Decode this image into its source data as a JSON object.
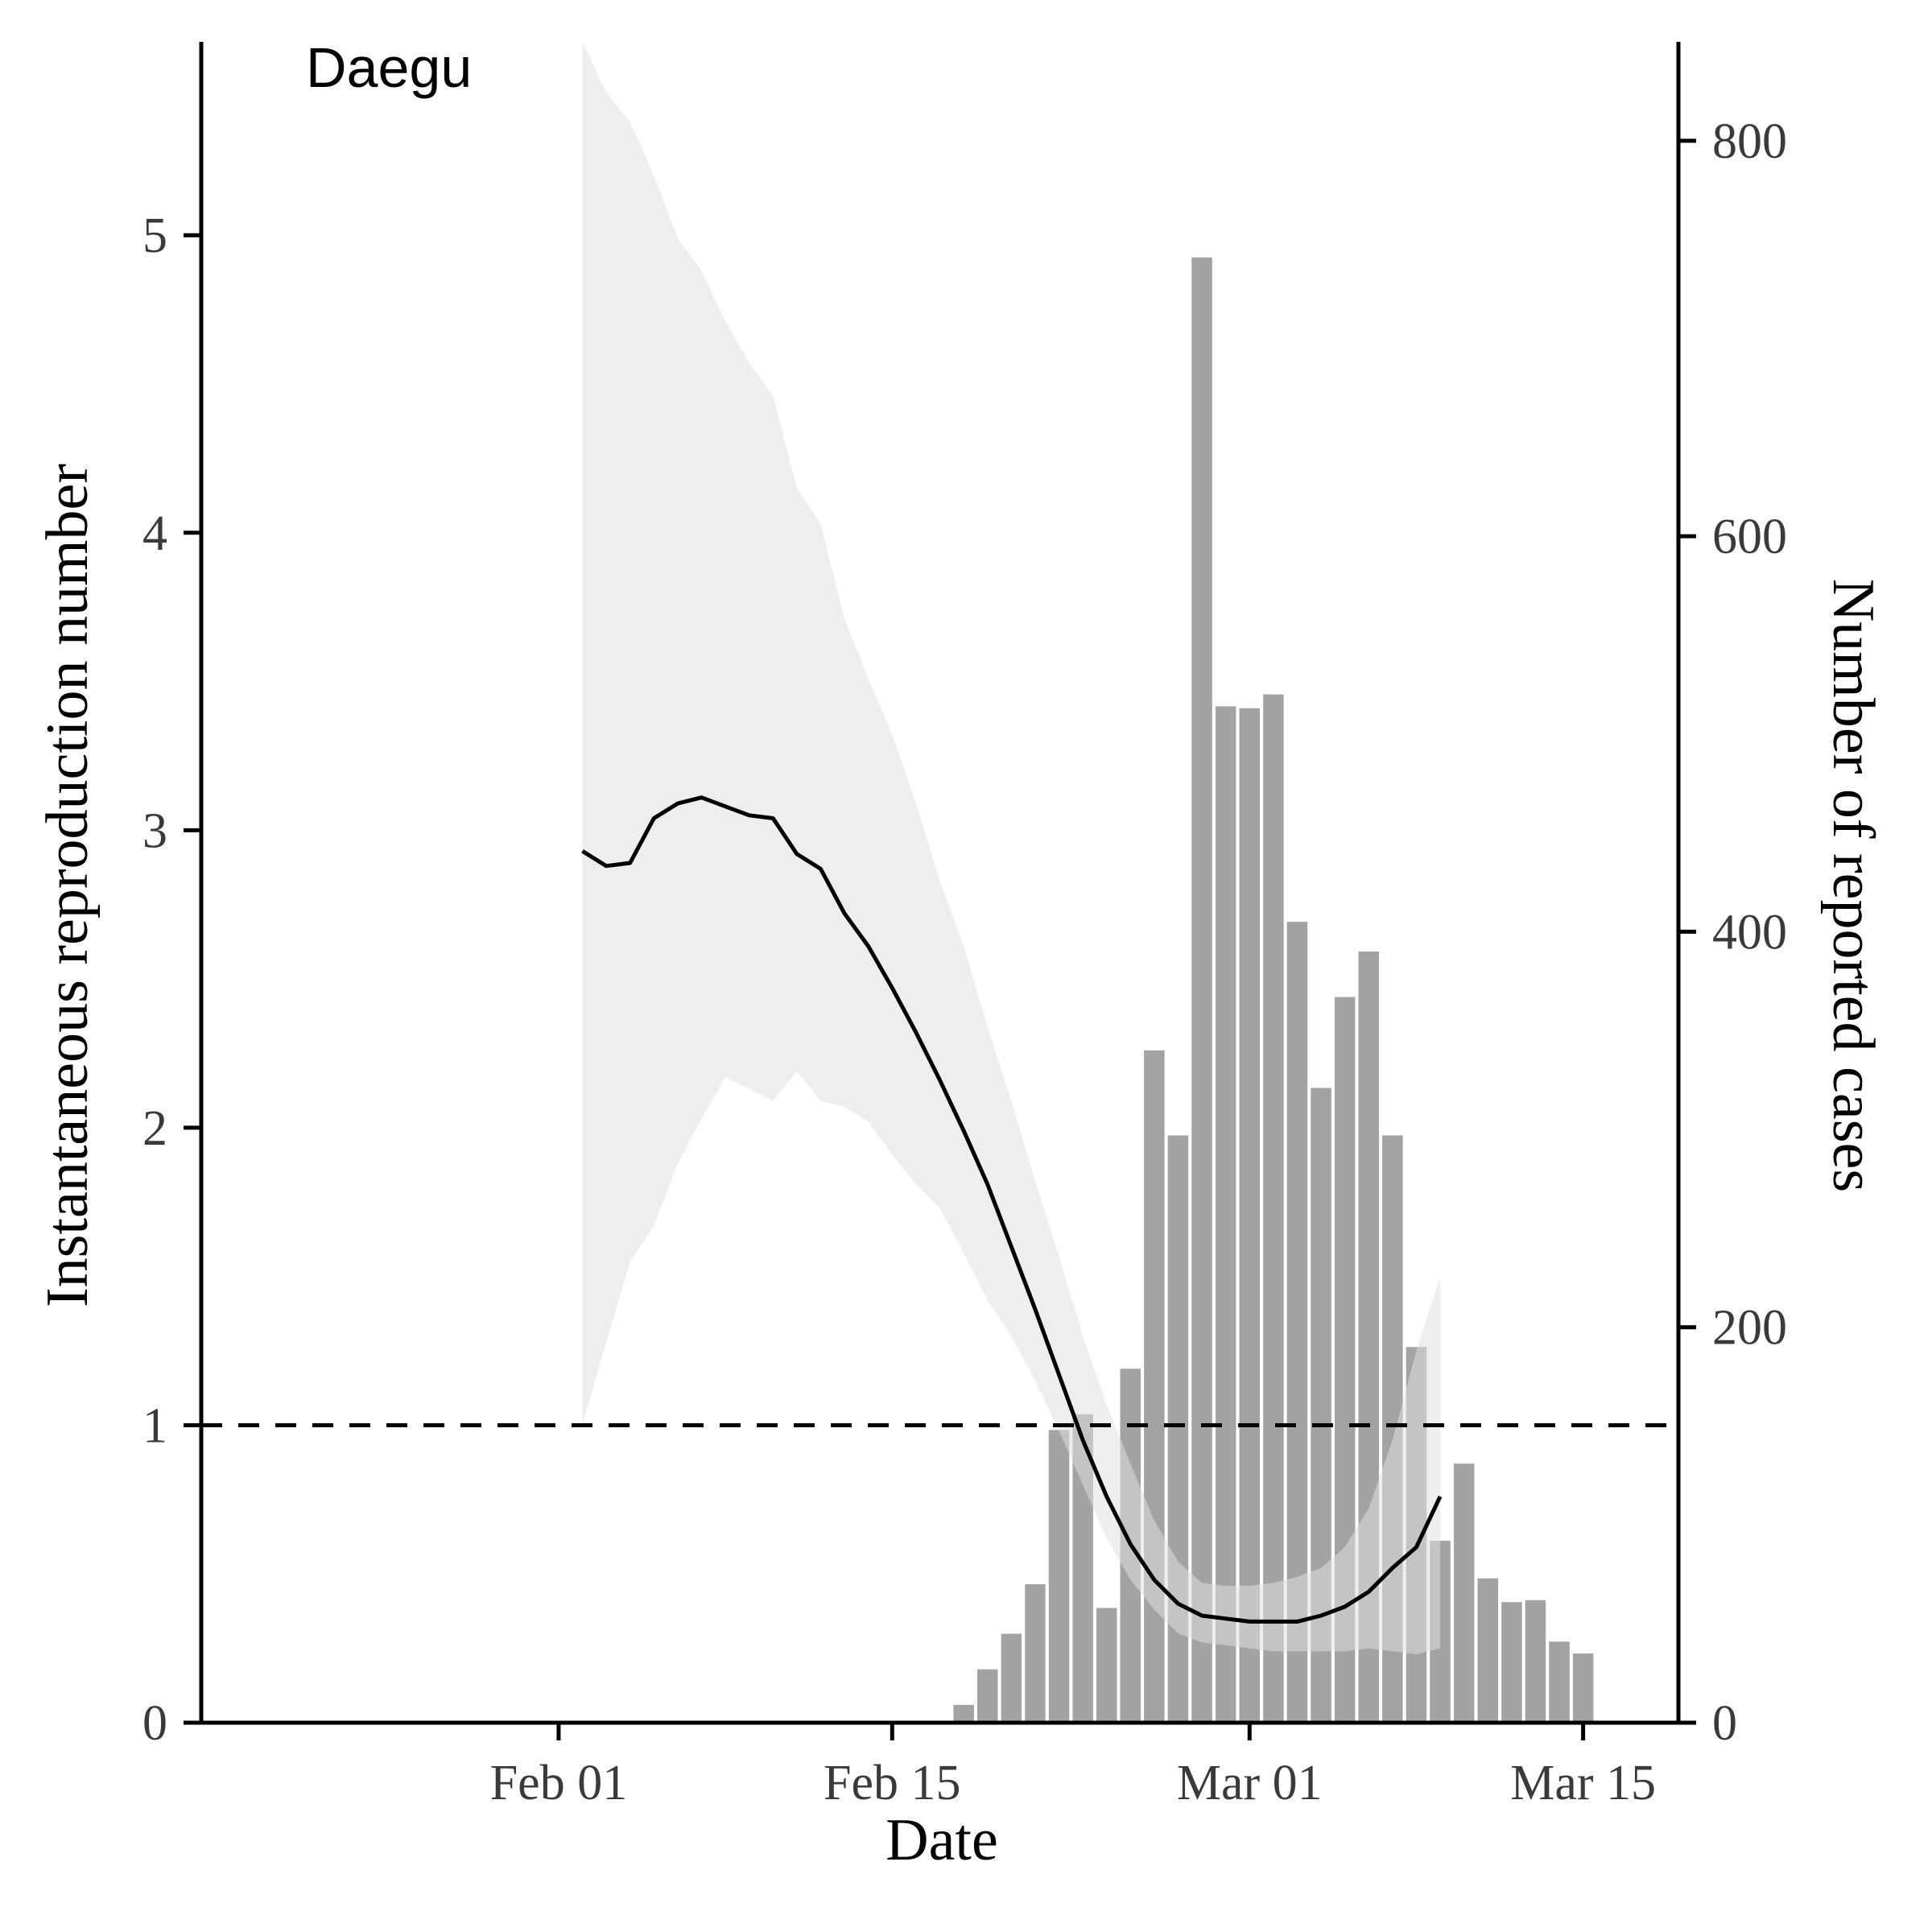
{
  "chart_data": {
    "type": "bar+line",
    "title": "Daegu",
    "xlabel": "Date",
    "ylabel_left": "Instantaneous reproduction number",
    "ylabel_right": "Number of reported cases",
    "x_ticks": [
      {
        "date": "2020-02-01",
        "label": "Feb 01"
      },
      {
        "date": "2020-02-15",
        "label": "Feb 15"
      },
      {
        "date": "2020-03-01",
        "label": "Mar 01"
      },
      {
        "date": "2020-03-15",
        "label": "Mar 15"
      }
    ],
    "xlim": [
      "2020-01-17",
      "2020-03-19"
    ],
    "y_left_ticks": [
      0,
      1,
      2,
      3,
      4,
      5
    ],
    "y_left_lim": [
      0,
      5.65
    ],
    "y_right_ticks": [
      0,
      200,
      400,
      600,
      800
    ],
    "y_right_lim": [
      0,
      850
    ],
    "threshold_line": 1,
    "grid": false,
    "colors": {
      "bars": "#a3a3a3",
      "ci_band": "#e0e0e0",
      "ci_band_opacity": 0.55,
      "line": "#000000",
      "axis": "#000000"
    },
    "reported_cases": [
      {
        "date": "2020-02-18",
        "value": 9
      },
      {
        "date": "2020-02-19",
        "value": 27
      },
      {
        "date": "2020-02-20",
        "value": 45
      },
      {
        "date": "2020-02-21",
        "value": 70
      },
      {
        "date": "2020-02-22",
        "value": 148
      },
      {
        "date": "2020-02-23",
        "value": 156
      },
      {
        "date": "2020-02-24",
        "value": 58
      },
      {
        "date": "2020-02-25",
        "value": 179
      },
      {
        "date": "2020-02-26",
        "value": 340
      },
      {
        "date": "2020-02-27",
        "value": 297
      },
      {
        "date": "2020-02-28",
        "value": 741
      },
      {
        "date": "2020-02-29",
        "value": 514
      },
      {
        "date": "2020-03-01",
        "value": 513
      },
      {
        "date": "2020-03-02",
        "value": 520
      },
      {
        "date": "2020-03-03",
        "value": 405
      },
      {
        "date": "2020-03-04",
        "value": 321
      },
      {
        "date": "2020-03-05",
        "value": 367
      },
      {
        "date": "2020-03-06",
        "value": 390
      },
      {
        "date": "2020-03-07",
        "value": 297
      },
      {
        "date": "2020-03-08",
        "value": 190
      },
      {
        "date": "2020-03-09",
        "value": 92
      },
      {
        "date": "2020-03-10",
        "value": 131
      },
      {
        "date": "2020-03-11",
        "value": 73
      },
      {
        "date": "2020-03-12",
        "value": 61
      },
      {
        "date": "2020-03-13",
        "value": 62
      },
      {
        "date": "2020-03-14",
        "value": 41
      },
      {
        "date": "2020-03-15",
        "value": 35
      }
    ],
    "rt_series": [
      {
        "date": "2020-02-02",
        "mean": 2.93,
        "lower": 1.0,
        "upper": 5.65
      },
      {
        "date": "2020-02-03",
        "mean": 2.88,
        "lower": 1.28,
        "upper": 5.48
      },
      {
        "date": "2020-02-04",
        "mean": 2.89,
        "lower": 1.55,
        "upper": 5.38
      },
      {
        "date": "2020-02-05",
        "mean": 3.04,
        "lower": 1.67,
        "upper": 5.2
      },
      {
        "date": "2020-02-06",
        "mean": 3.09,
        "lower": 1.88,
        "upper": 4.99
      },
      {
        "date": "2020-02-07",
        "mean": 3.11,
        "lower": 2.03,
        "upper": 4.88
      },
      {
        "date": "2020-02-08",
        "mean": 3.08,
        "lower": 2.17,
        "upper": 4.71
      },
      {
        "date": "2020-02-09",
        "mean": 3.05,
        "lower": 2.13,
        "upper": 4.57
      },
      {
        "date": "2020-02-10",
        "mean": 3.04,
        "lower": 2.09,
        "upper": 4.46
      },
      {
        "date": "2020-02-11",
        "mean": 2.92,
        "lower": 2.19,
        "upper": 4.15
      },
      {
        "date": "2020-02-12",
        "mean": 2.87,
        "lower": 2.09,
        "upper": 4.03
      },
      {
        "date": "2020-02-13",
        "mean": 2.72,
        "lower": 2.07,
        "upper": 3.71
      },
      {
        "date": "2020-02-14",
        "mean": 2.61,
        "lower": 2.02,
        "upper": 3.51
      },
      {
        "date": "2020-02-15",
        "mean": 2.47,
        "lower": 1.91,
        "upper": 3.32
      },
      {
        "date": "2020-02-16",
        "mean": 2.32,
        "lower": 1.81,
        "upper": 3.09
      },
      {
        "date": "2020-02-17",
        "mean": 2.16,
        "lower": 1.73,
        "upper": 2.83
      },
      {
        "date": "2020-02-18",
        "mean": 1.99,
        "lower": 1.58,
        "upper": 2.61
      },
      {
        "date": "2020-02-19",
        "mean": 1.81,
        "lower": 1.42,
        "upper": 2.34
      },
      {
        "date": "2020-02-20",
        "mean": 1.6,
        "lower": 1.3,
        "upper": 2.09
      },
      {
        "date": "2020-02-21",
        "mean": 1.39,
        "lower": 1.15,
        "upper": 1.82
      },
      {
        "date": "2020-02-22",
        "mean": 1.17,
        "lower": 0.98,
        "upper": 1.57
      },
      {
        "date": "2020-02-23",
        "mean": 0.95,
        "lower": 0.8,
        "upper": 1.3
      },
      {
        "date": "2020-02-24",
        "mean": 0.76,
        "lower": 0.62,
        "upper": 1.07
      },
      {
        "date": "2020-02-25",
        "mean": 0.6,
        "lower": 0.48,
        "upper": 0.87
      },
      {
        "date": "2020-02-26",
        "mean": 0.48,
        "lower": 0.38,
        "upper": 0.68
      },
      {
        "date": "2020-02-27",
        "mean": 0.4,
        "lower": 0.3,
        "upper": 0.54
      },
      {
        "date": "2020-02-28",
        "mean": 0.36,
        "lower": 0.27,
        "upper": 0.47
      },
      {
        "date": "2020-02-29",
        "mean": 0.35,
        "lower": 0.26,
        "upper": 0.46
      },
      {
        "date": "2020-03-01",
        "mean": 0.34,
        "lower": 0.25,
        "upper": 0.46
      },
      {
        "date": "2020-03-02",
        "mean": 0.34,
        "lower": 0.24,
        "upper": 0.47
      },
      {
        "date": "2020-03-03",
        "mean": 0.34,
        "lower": 0.24,
        "upper": 0.49
      },
      {
        "date": "2020-03-04",
        "mean": 0.36,
        "lower": 0.24,
        "upper": 0.52
      },
      {
        "date": "2020-03-05",
        "mean": 0.39,
        "lower": 0.24,
        "upper": 0.59
      },
      {
        "date": "2020-03-06",
        "mean": 0.44,
        "lower": 0.25,
        "upper": 0.72
      },
      {
        "date": "2020-03-07",
        "mean": 0.52,
        "lower": 0.24,
        "upper": 0.95
      },
      {
        "date": "2020-03-08",
        "mean": 0.59,
        "lower": 0.23,
        "upper": 1.25
      },
      {
        "date": "2020-03-09",
        "mean": 0.76,
        "lower": 0.25,
        "upper": 1.5
      }
    ]
  }
}
